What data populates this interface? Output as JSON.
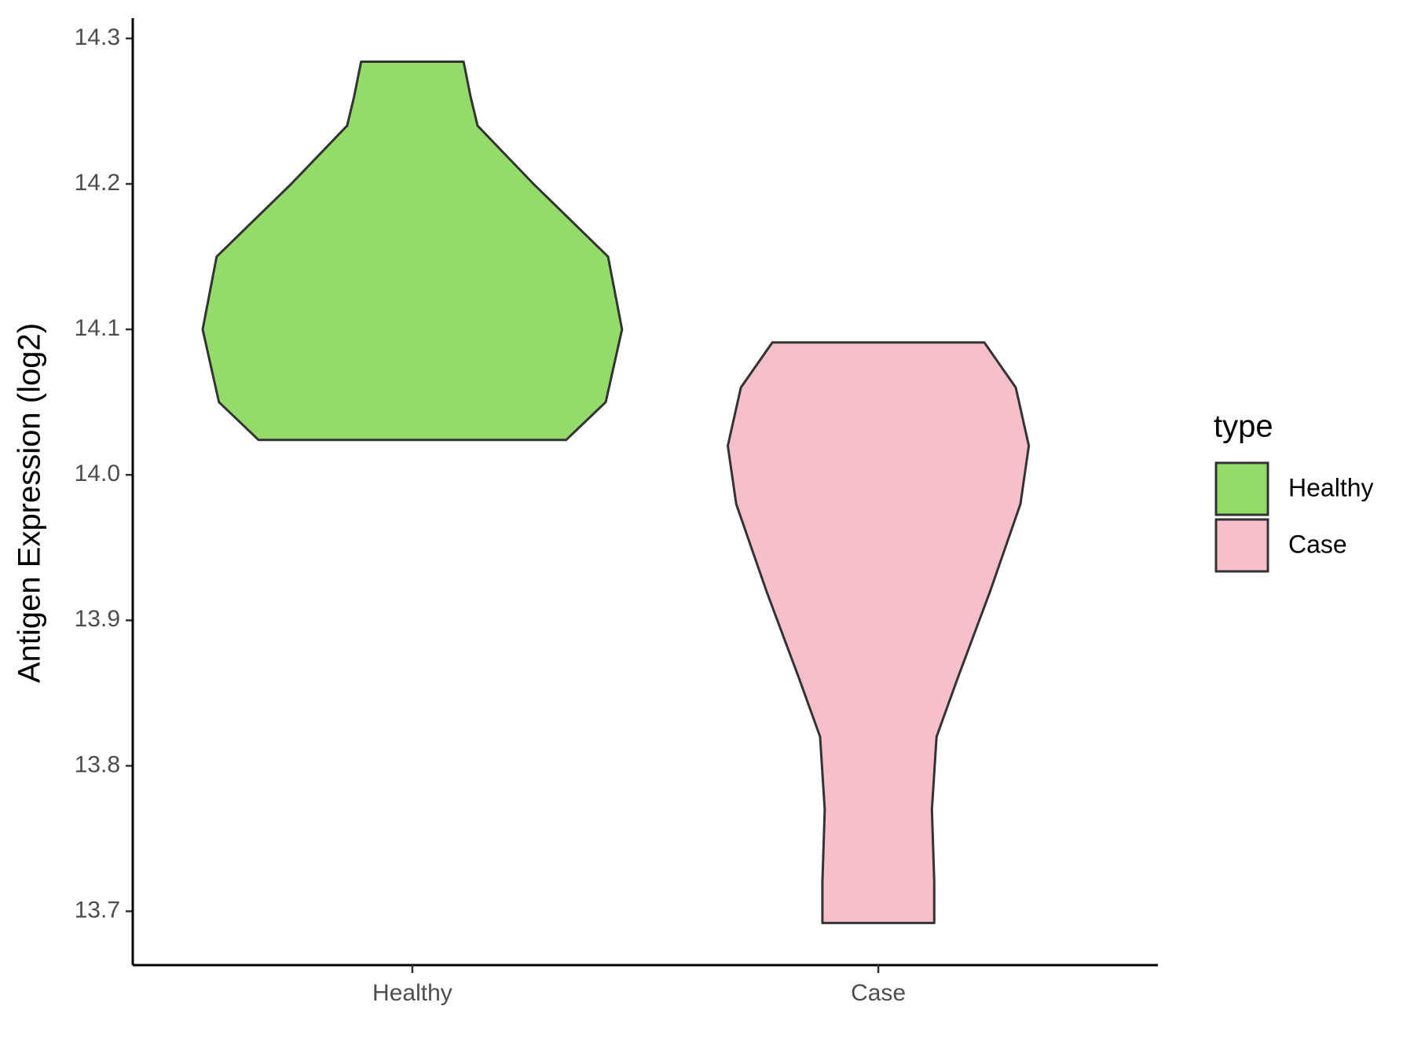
{
  "chart_data": {
    "type": "violin",
    "y_label": "Antigen Expression (log2)",
    "categories": [
      "Healthy",
      "Case"
    ],
    "legend_title": "type",
    "legend_position": "right",
    "ylim": [
      13.663,
      14.314
    ],
    "yticks": [
      {
        "value": 13.7,
        "label": "13.7"
      },
      {
        "value": 13.8,
        "label": "13.8"
      },
      {
        "value": 13.9,
        "label": "13.9"
      },
      {
        "value": 14.0,
        "label": "14.0"
      },
      {
        "value": 14.1,
        "label": "14.1"
      },
      {
        "value": 14.2,
        "label": "14.2"
      },
      {
        "value": 14.3,
        "label": "14.3"
      }
    ],
    "series": [
      {
        "name": "Healthy",
        "color": "#93dc6a",
        "y": [
          14.024,
          14.05,
          14.1,
          14.15,
          14.2,
          14.24,
          14.26,
          14.284
        ],
        "widths": [
          0.66,
          0.83,
          0.9,
          0.84,
          0.52,
          0.28,
          0.25,
          0.22
        ]
      },
      {
        "name": "Case",
        "color": "#f7bfca",
        "y": [
          13.692,
          13.72,
          13.77,
          13.82,
          13.86,
          13.92,
          13.98,
          14.02,
          14.06,
          14.091
        ],
        "widths": [
          0.24,
          0.24,
          0.23,
          0.25,
          0.34,
          0.48,
          0.61,
          0.646,
          0.59,
          0.455
        ]
      }
    ]
  }
}
